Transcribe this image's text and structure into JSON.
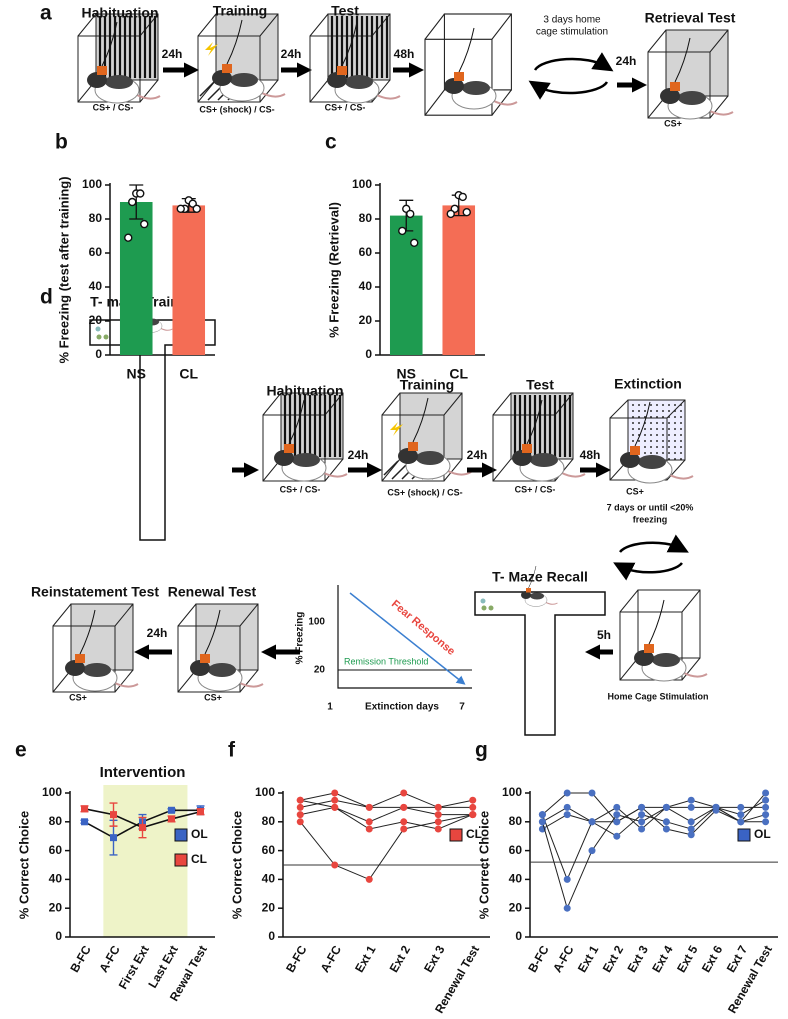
{
  "figure_a": {
    "label": "a",
    "stages": [
      {
        "title": "Habituation",
        "cue": "CS+ / CS-"
      },
      {
        "title": "Training",
        "cue": "CS+ (shock) / CS-"
      },
      {
        "title": "Test",
        "cue": "CS+ / CS-"
      },
      {
        "title": "Retrieval Test",
        "cue": "CS+"
      }
    ],
    "intervals": [
      "24h",
      "24h",
      "48h",
      "24h"
    ],
    "note": [
      "3 days home",
      "cage stimulation"
    ]
  },
  "figure_d": {
    "label": "d",
    "maze_training": "T- maze Training",
    "stages": [
      {
        "title": "Habituation",
        "cue": "CS+ / CS-"
      },
      {
        "title": "Training",
        "cue": "CS+ (shock) / CS-"
      },
      {
        "title": "Test",
        "cue": "CS+ / CS-"
      },
      {
        "title": "Extinction",
        "cue": "CS+"
      }
    ],
    "intervals": [
      "24h",
      "24h",
      "48h"
    ],
    "extinction_note": [
      "7 days or until <20%",
      "freezing"
    ],
    "home_cage": "Home Cage Stimulation",
    "delay_recall": "5h",
    "maze_recall": "T- Maze Recall",
    "renewal": {
      "title": "Renewal Test",
      "cue": "CS+"
    },
    "reinstatement": {
      "title": "Reinstatement Test",
      "cue": "CS+"
    },
    "delay_reinstatement": "24h",
    "inset": {
      "y_label": "% Freezing",
      "y_top": "100",
      "y_threshold": "20",
      "x_start": "1",
      "x_label": "Extinction days",
      "x_end": "7",
      "trend": "Fear Response",
      "threshold": "Remission Threshold"
    }
  },
  "chart_data": [
    {
      "type": "bar",
      "panel": "b",
      "y_label": "% Freezing (test after training)",
      "categories": [
        "NS",
        "CL"
      ],
      "values": [
        90,
        88
      ],
      "errors": [
        10,
        4
      ],
      "colors": [
        "#1e9b50",
        "#f46d55"
      ],
      "points": [
        [
          95,
          95,
          90,
          77,
          69
        ],
        [
          91,
          89,
          86,
          86,
          86
        ]
      ],
      "ylim": [
        0,
        100
      ],
      "yticks": [
        0,
        20,
        40,
        60,
        80,
        100
      ]
    },
    {
      "type": "bar",
      "panel": "c",
      "y_label": "% Freezing (Retrieval)",
      "categories": [
        "NS",
        "CL"
      ],
      "values": [
        82,
        88
      ],
      "errors": [
        9,
        6
      ],
      "colors": [
        "#1e9b50",
        "#f46d55"
      ],
      "points": [
        [
          86,
          83,
          73,
          66
        ],
        [
          94,
          93,
          86,
          84,
          83
        ]
      ],
      "ylim": [
        0,
        100
      ],
      "yticks": [
        0,
        20,
        40,
        60,
        80,
        100
      ]
    },
    {
      "type": "line",
      "panel": "e",
      "y_label": "% Correct Choice",
      "annotation": "Intervention",
      "categories": [
        "B-FC",
        "A-FC",
        "First Ext",
        "Last Ext",
        "Rewal Test"
      ],
      "series": [
        {
          "name": "OL",
          "color": "#3a63c4",
          "values": [
            80,
            69,
            80,
            88,
            88
          ],
          "errors": [
            1,
            12,
            5,
            1,
            3
          ]
        },
        {
          "name": "CL",
          "color": "#e8463f",
          "values": [
            89,
            85,
            76,
            82,
            87
          ],
          "errors": [
            2,
            8,
            7,
            2,
            2
          ]
        }
      ],
      "ylim": [
        0,
        100
      ],
      "yticks": [
        0,
        20,
        40,
        60,
        80,
        100
      ]
    },
    {
      "type": "line",
      "panel": "f",
      "y_label": "% Correct Choice",
      "categories": [
        "B-FC",
        "A-FC",
        "Ext 1",
        "Ext 2",
        "Ext 3",
        "Renewal Test"
      ],
      "series": [
        {
          "color": "#e8463f",
          "values": [
            95,
            100,
            90,
            100,
            90,
            95
          ]
        },
        {
          "color": "#e8463f",
          "values": [
            90,
            95,
            90,
            90,
            90,
            90
          ]
        },
        {
          "color": "#e8463f",
          "values": [
            85,
            90,
            80,
            90,
            85,
            85
          ]
        },
        {
          "color": "#e8463f",
          "values": [
            80,
            50,
            40,
            75,
            80,
            85
          ]
        },
        {
          "color": "#e8463f",
          "values": [
            95,
            90,
            75,
            80,
            75,
            85
          ]
        }
      ],
      "hline": 50,
      "legend": [
        {
          "name": "CL",
          "color": "#e8463f"
        }
      ],
      "ylim": [
        0,
        100
      ],
      "yticks": [
        0,
        20,
        40,
        60,
        80,
        100
      ]
    },
    {
      "type": "line",
      "panel": "g",
      "y_label": "% Correct Choice",
      "categories": [
        "B-FC",
        "A-FC",
        "Ext 1",
        "Ext 2",
        "Ext 3",
        "Ext 4",
        "Ext 5",
        "Ext 6",
        "Ext 7",
        "Renewal Test"
      ],
      "series": [
        {
          "color": "#4a70c1",
          "values": [
            85,
            100,
            100,
            80,
            90,
            90,
            95,
            90,
            80,
            100
          ]
        },
        {
          "color": "#4a70c1",
          "values": [
            80,
            90,
            80,
            90,
            75,
            90,
            90,
            90,
            85,
            95
          ]
        },
        {
          "color": "#4a70c1",
          "values": [
            75,
            85,
            80,
            70,
            85,
            80,
            75,
            90,
            90,
            90
          ]
        },
        {
          "color": "#4a70c1",
          "values": [
            85,
            40,
            80,
            80,
            90,
            75,
            71,
            88,
            80,
            85
          ]
        },
        {
          "color": "#4a70c1",
          "values": [
            80,
            20,
            60,
            85,
            80,
            90,
            80,
            90,
            80,
            80
          ]
        }
      ],
      "hline": 52,
      "legend": [
        {
          "name": "OL",
          "color": "#3a63c4"
        }
      ],
      "ylim": [
        0,
        100
      ],
      "yticks": [
        0,
        20,
        40,
        60,
        80,
        100
      ]
    }
  ]
}
